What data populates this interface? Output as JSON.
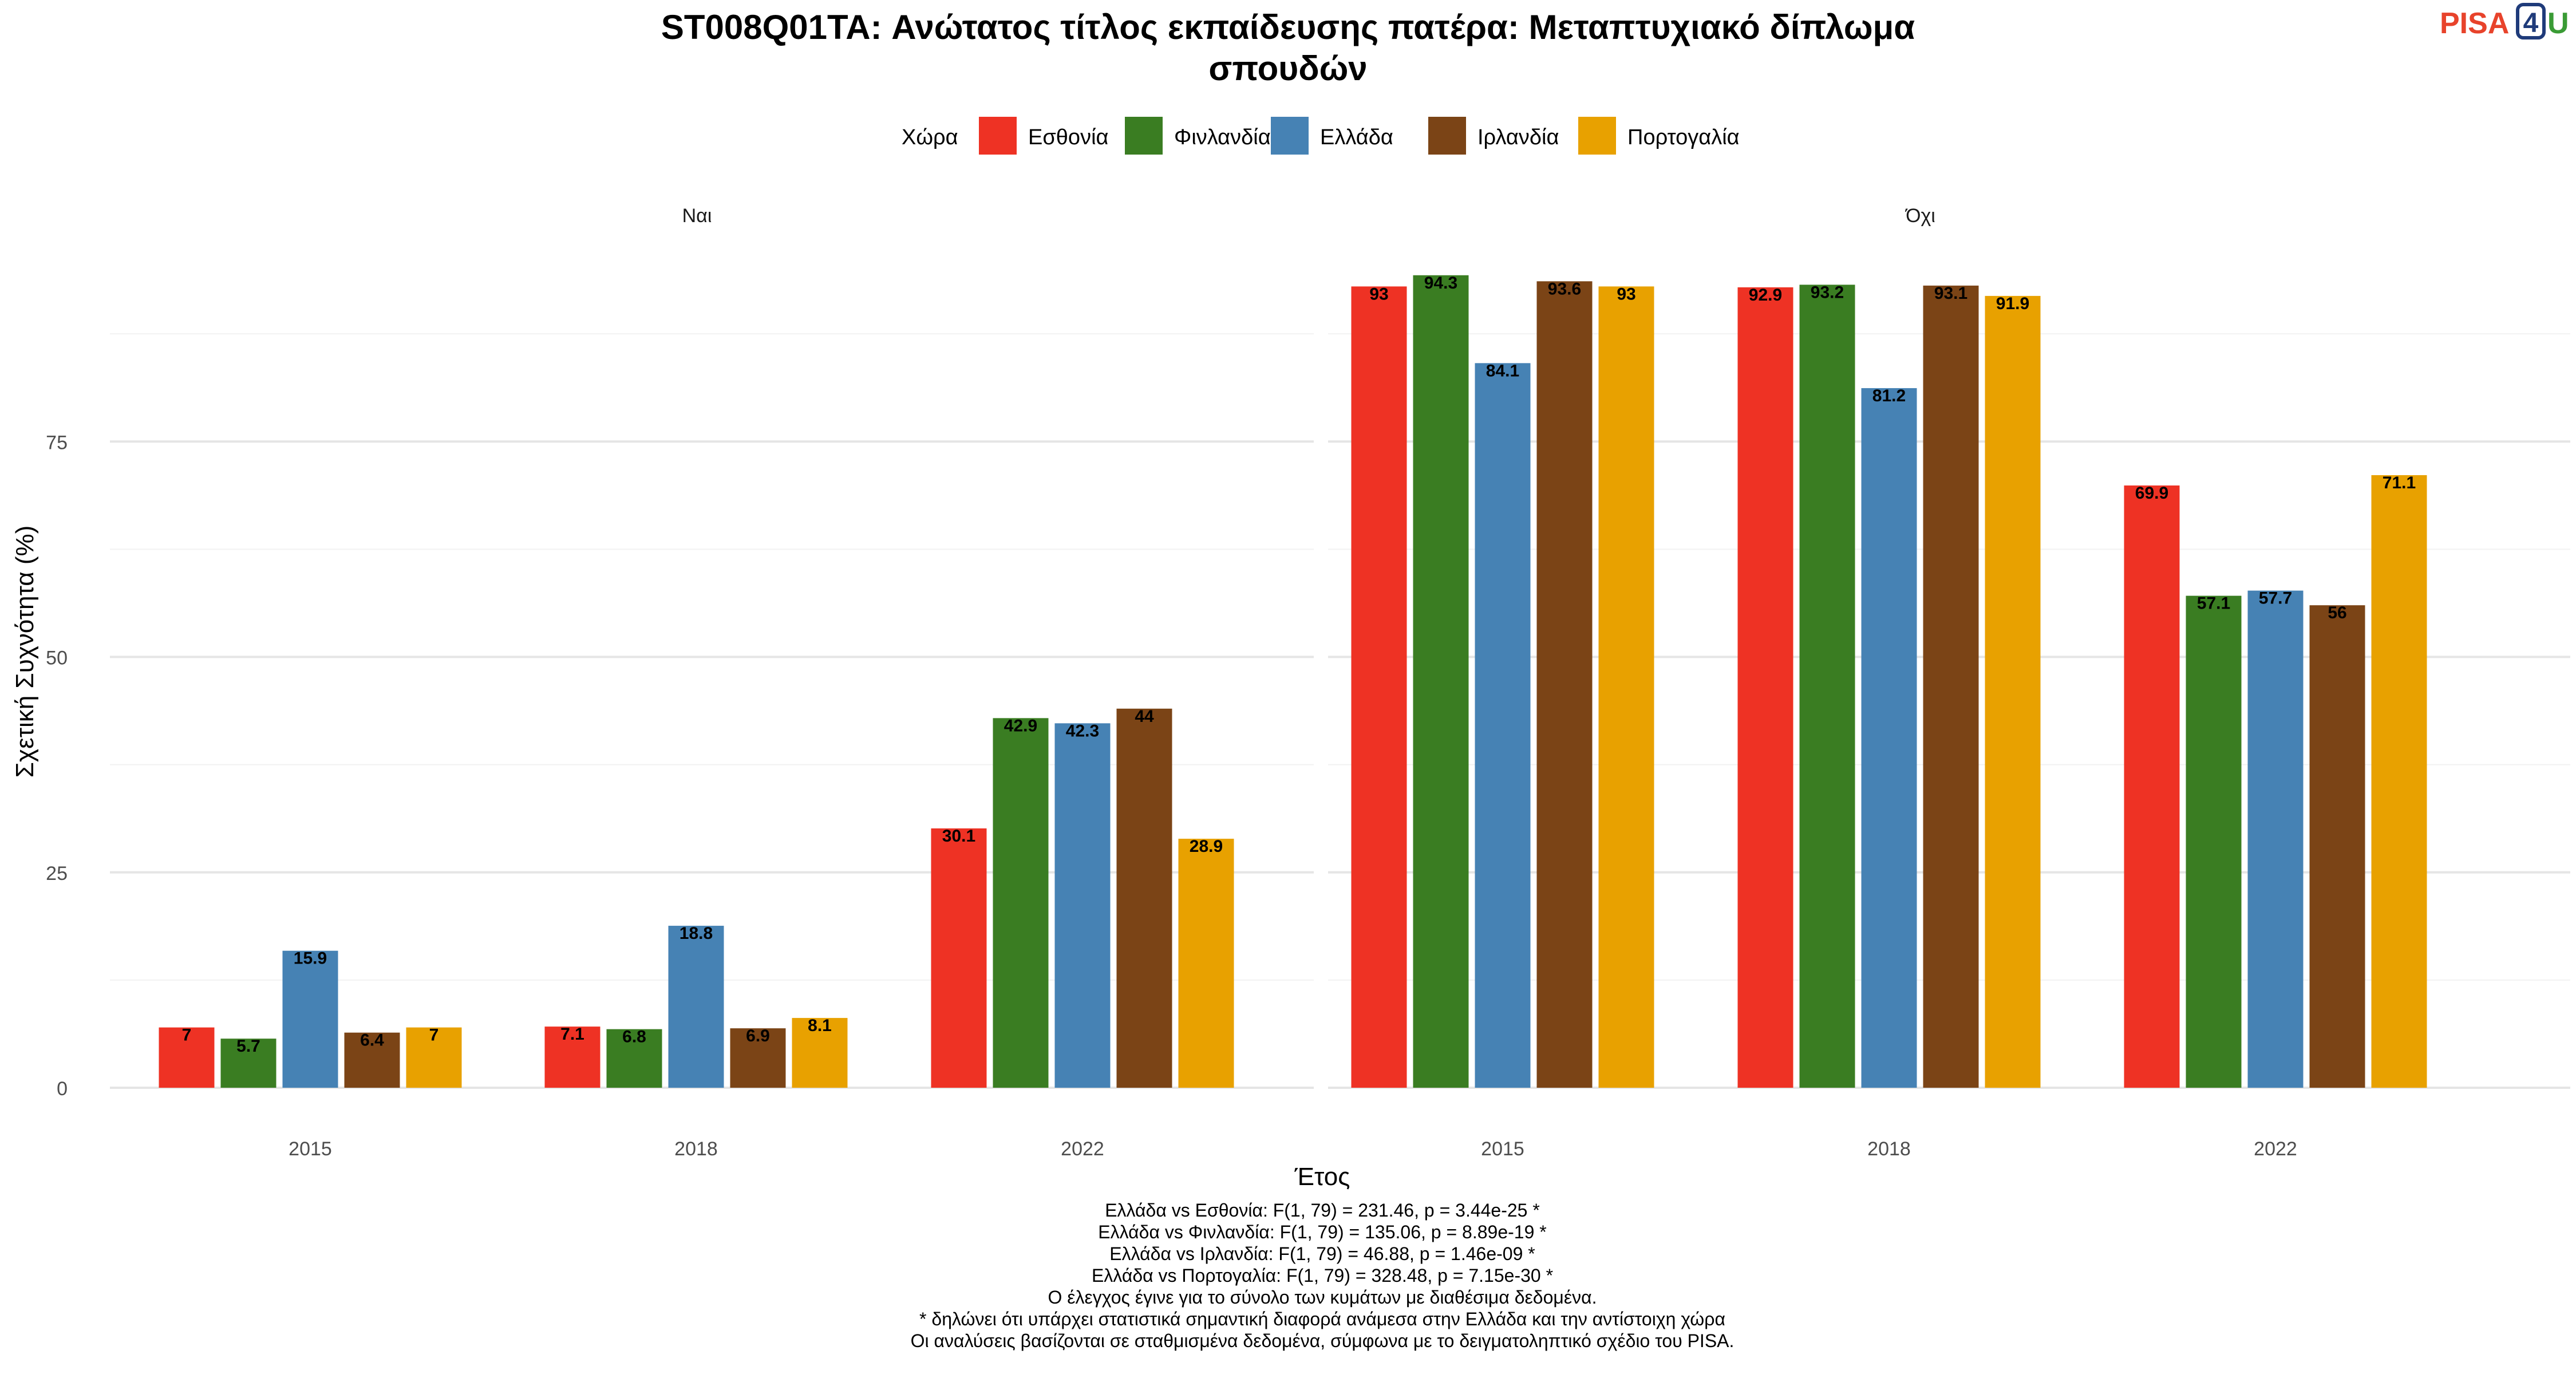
{
  "logo": {
    "text": "PISA4U",
    "part1": "PISA",
    "part2": "4",
    "part3": "U"
  },
  "chart_data": {
    "type": "bar",
    "title_line1": "ST008Q01TA: Ανώτατος τίτλος εκπαίδευσης πατέρα: Μεταπτυχιακό δίπλωμα",
    "title_line2": "σπουδών",
    "xlabel": "Έτος",
    "ylabel": "Σχετική Συχνότητα (%)",
    "ylim": [
      0,
      100
    ],
    "yticks": [
      0,
      25,
      50,
      75
    ],
    "grid": true,
    "legend": {
      "title": "Χώρα",
      "placement": "top",
      "entries": [
        {
          "name": "Εσθονία",
          "color": "#EE3224"
        },
        {
          "name": "Φινλανδία",
          "color": "#3A7D22"
        },
        {
          "name": "Ελλάδα",
          "color": "#4682B4"
        },
        {
          "name": "Ιρλανδία",
          "color": "#7B4416"
        },
        {
          "name": "Πορτογαλία",
          "color": "#E8A100"
        }
      ]
    },
    "categories": [
      "2015",
      "2018",
      "2022"
    ],
    "panels": [
      {
        "name": "Ναι",
        "series": [
          {
            "name": "Εσθονία",
            "values": [
              7,
              7.1,
              30.1
            ]
          },
          {
            "name": "Φινλανδία",
            "values": [
              5.7,
              6.8,
              42.9
            ]
          },
          {
            "name": "Ελλάδα",
            "values": [
              15.9,
              18.8,
              42.3
            ]
          },
          {
            "name": "Ιρλανδία",
            "values": [
              6.4,
              6.9,
              44
            ]
          },
          {
            "name": "Πορτογαλία",
            "values": [
              7,
              8.1,
              28.9
            ]
          }
        ]
      },
      {
        "name": "Όχι",
        "series": [
          {
            "name": "Εσθονία",
            "values": [
              93,
              92.9,
              69.9
            ]
          },
          {
            "name": "Φινλανδία",
            "values": [
              94.3,
              93.2,
              57.1
            ]
          },
          {
            "name": "Ελλάδα",
            "values": [
              84.1,
              81.2,
              57.7
            ]
          },
          {
            "name": "Ιρλανδία",
            "values": [
              93.6,
              93.1,
              56
            ]
          },
          {
            "name": "Πορτογαλία",
            "values": [
              93,
              91.9,
              71.1
            ]
          }
        ]
      }
    ],
    "caption": [
      "Ελλάδα vs Εσθονία: F(1, 79) = 231.46, p = 3.44e-25 *",
      "Ελλάδα vs Φινλανδία: F(1, 79) = 135.06, p = 8.89e-19 *",
      "Ελλάδα vs Ιρλανδία: F(1, 79) = 46.88, p = 1.46e-09 *",
      "Ελλάδα vs Πορτογαλία: F(1, 79) = 328.48, p = 7.15e-30 *",
      "Ο έλεγχος έγινε για το σύνολο των κυμάτων με διαθέσιμα δεδομένα.",
      "* δηλώνει ότι υπάρχει στατιστικά σημαντική διαφορά ανάμεσα στην Ελλάδα και την αντίστοιχη χώρα",
      "Οι αναλύσεις βασίζονται σε σταθμισμένα δεδομένα, σύμφωνα με το δειγματοληπτικό σχέδιο του PISA."
    ]
  }
}
